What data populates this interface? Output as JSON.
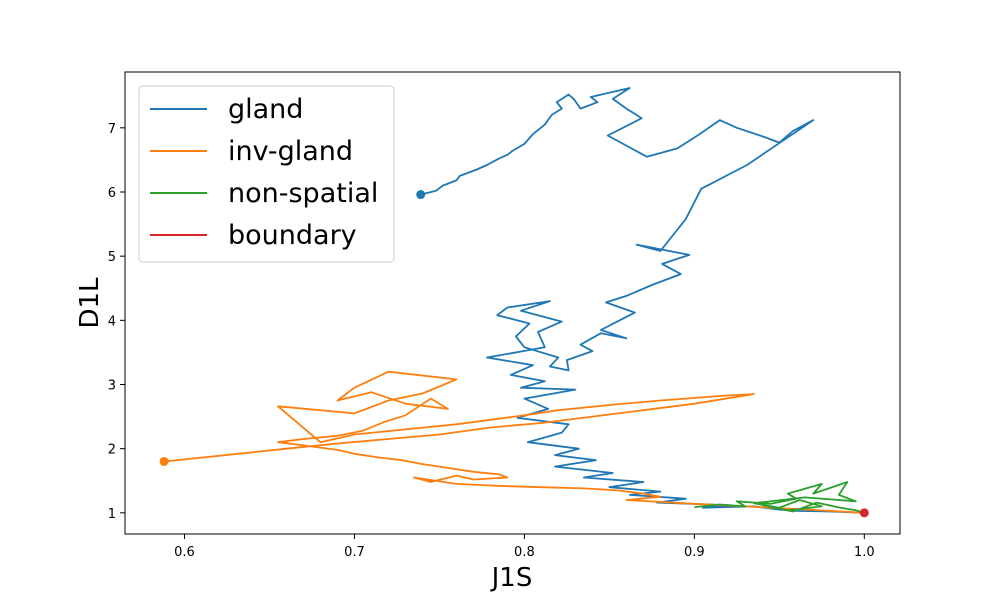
{
  "chart_data": {
    "type": "line",
    "title": "",
    "xlabel": "J1S",
    "ylabel": "D1L",
    "xlim": [
      0.565,
      1.021
    ],
    "ylim": [
      0.67,
      7.87
    ],
    "xticks": [
      0.6,
      0.7,
      0.8,
      0.9,
      1.0
    ],
    "xtick_labels": [
      "0.6",
      "0.7",
      "0.8",
      "0.9",
      "1.0"
    ],
    "yticks": [
      1,
      2,
      3,
      4,
      5,
      6,
      7
    ],
    "ytick_labels": [
      "1",
      "2",
      "3",
      "4",
      "5",
      "6",
      "7"
    ],
    "grid": false,
    "legend_position": "top-left",
    "series": [
      {
        "name": "gland",
        "color": "#1f77b4",
        "start_marker": true,
        "x": [
          0.739,
          0.748,
          0.752,
          0.76,
          0.762,
          0.772,
          0.778,
          0.785,
          0.79,
          0.793,
          0.8,
          0.805,
          0.812,
          0.816,
          0.822,
          0.819,
          0.826,
          0.829,
          0.833,
          0.843,
          0.839,
          0.862,
          0.852,
          0.86,
          0.869,
          0.852,
          0.849,
          0.872,
          0.89,
          0.903,
          0.915,
          0.925,
          0.942,
          0.95,
          0.958,
          0.97,
          0.931,
          0.904,
          0.895,
          0.88,
          0.866,
          0.897,
          0.881,
          0.892,
          0.875,
          0.86,
          0.848,
          0.865,
          0.853,
          0.845,
          0.86,
          0.845,
          0.833,
          0.84,
          0.825,
          0.826,
          0.815,
          0.82,
          0.8,
          0.795,
          0.803,
          0.784,
          0.79,
          0.815,
          0.798,
          0.822,
          0.808,
          0.812,
          0.778,
          0.805,
          0.792,
          0.812,
          0.798,
          0.83,
          0.8,
          0.814,
          0.796,
          0.826,
          0.822,
          0.802,
          0.832,
          0.818,
          0.842,
          0.818,
          0.852,
          0.835,
          0.87,
          0.85,
          0.88,
          0.862,
          0.895,
          0.878,
          0.92,
          0.905,
          0.935,
          0.95,
          0.96,
          0.98,
          1.0
        ],
        "y": [
          5.96,
          6.02,
          6.1,
          6.18,
          6.25,
          6.35,
          6.42,
          6.52,
          6.58,
          6.64,
          6.75,
          6.9,
          7.05,
          7.2,
          7.3,
          7.4,
          7.52,
          7.45,
          7.3,
          7.4,
          7.48,
          7.62,
          7.45,
          7.3,
          7.15,
          6.92,
          6.88,
          6.55,
          6.68,
          6.9,
          7.12,
          7.0,
          6.85,
          6.77,
          6.95,
          7.12,
          6.42,
          6.05,
          5.58,
          5.08,
          5.18,
          5.02,
          4.88,
          4.72,
          4.55,
          4.38,
          4.28,
          4.12,
          3.96,
          3.85,
          3.72,
          3.8,
          3.62,
          3.52,
          3.38,
          3.22,
          3.28,
          3.42,
          3.58,
          3.75,
          3.95,
          4.08,
          4.2,
          4.3,
          4.15,
          3.98,
          3.82,
          3.58,
          3.42,
          3.3,
          3.15,
          3.05,
          2.95,
          2.92,
          2.78,
          2.62,
          2.48,
          2.38,
          2.25,
          2.1,
          2.0,
          1.9,
          1.82,
          1.72,
          1.62,
          1.55,
          1.48,
          1.4,
          1.33,
          1.28,
          1.22,
          1.16,
          1.12,
          1.08,
          1.1,
          1.05,
          1.03,
          1.02,
          1.0
        ]
      },
      {
        "name": "inv-gland",
        "color": "#ff7f0e",
        "start_marker": true,
        "x": [
          0.588,
          0.61,
          0.635,
          0.66,
          0.69,
          0.72,
          0.75,
          0.78,
          0.81,
          0.84,
          0.87,
          0.9,
          0.935,
          0.915,
          0.88,
          0.85,
          0.82,
          0.8,
          0.78,
          0.76,
          0.73,
          0.7,
          0.68,
          0.655,
          0.7,
          0.72,
          0.74,
          0.76,
          0.72,
          0.7,
          0.69,
          0.71,
          0.73,
          0.755,
          0.745,
          0.73,
          0.718,
          0.705,
          0.69,
          0.67,
          0.655,
          0.67,
          0.69,
          0.7,
          0.715,
          0.728,
          0.74,
          0.755,
          0.77,
          0.785,
          0.79,
          0.77,
          0.76,
          0.745,
          0.735,
          0.76,
          0.785,
          0.81,
          0.835,
          0.855,
          0.87,
          0.88,
          0.86,
          0.9,
          0.93,
          0.96,
          1.0
        ],
        "y": [
          1.8,
          1.86,
          1.93,
          2.0,
          2.08,
          2.15,
          2.22,
          2.33,
          2.4,
          2.5,
          2.6,
          2.7,
          2.85,
          2.82,
          2.75,
          2.68,
          2.6,
          2.52,
          2.45,
          2.38,
          2.3,
          2.22,
          2.1,
          2.66,
          2.55,
          2.75,
          2.86,
          3.08,
          3.2,
          2.95,
          2.75,
          2.88,
          2.7,
          2.62,
          2.78,
          2.52,
          2.42,
          2.28,
          2.2,
          2.15,
          2.1,
          2.05,
          1.98,
          1.92,
          1.86,
          1.82,
          1.76,
          1.7,
          1.64,
          1.6,
          1.55,
          1.52,
          1.58,
          1.48,
          1.55,
          1.45,
          1.42,
          1.4,
          1.38,
          1.35,
          1.3,
          1.25,
          1.2,
          1.14,
          1.1,
          1.06,
          1.0
        ]
      },
      {
        "name": "non-spatial",
        "color": "#2ca02c",
        "start_marker": false,
        "x": [
          0.9,
          0.915,
          0.93,
          0.925,
          0.945,
          0.96,
          0.955,
          0.975,
          0.97,
          0.99,
          0.985,
          0.995,
          0.965,
          0.935,
          0.95,
          0.962,
          0.975,
          0.955,
          0.94,
          0.958,
          0.972,
          0.986,
          0.995,
          1.0
        ],
        "y": [
          1.09,
          1.13,
          1.1,
          1.18,
          1.14,
          1.22,
          1.3,
          1.45,
          1.3,
          1.48,
          1.28,
          1.18,
          1.24,
          1.15,
          1.08,
          1.2,
          1.1,
          1.04,
          1.12,
          1.02,
          1.16,
          1.08,
          1.04,
          1.0
        ]
      },
      {
        "name": "boundary",
        "color": "#d62728",
        "start_marker": true,
        "x": [
          1.0
        ],
        "y": [
          1.0
        ]
      }
    ]
  }
}
